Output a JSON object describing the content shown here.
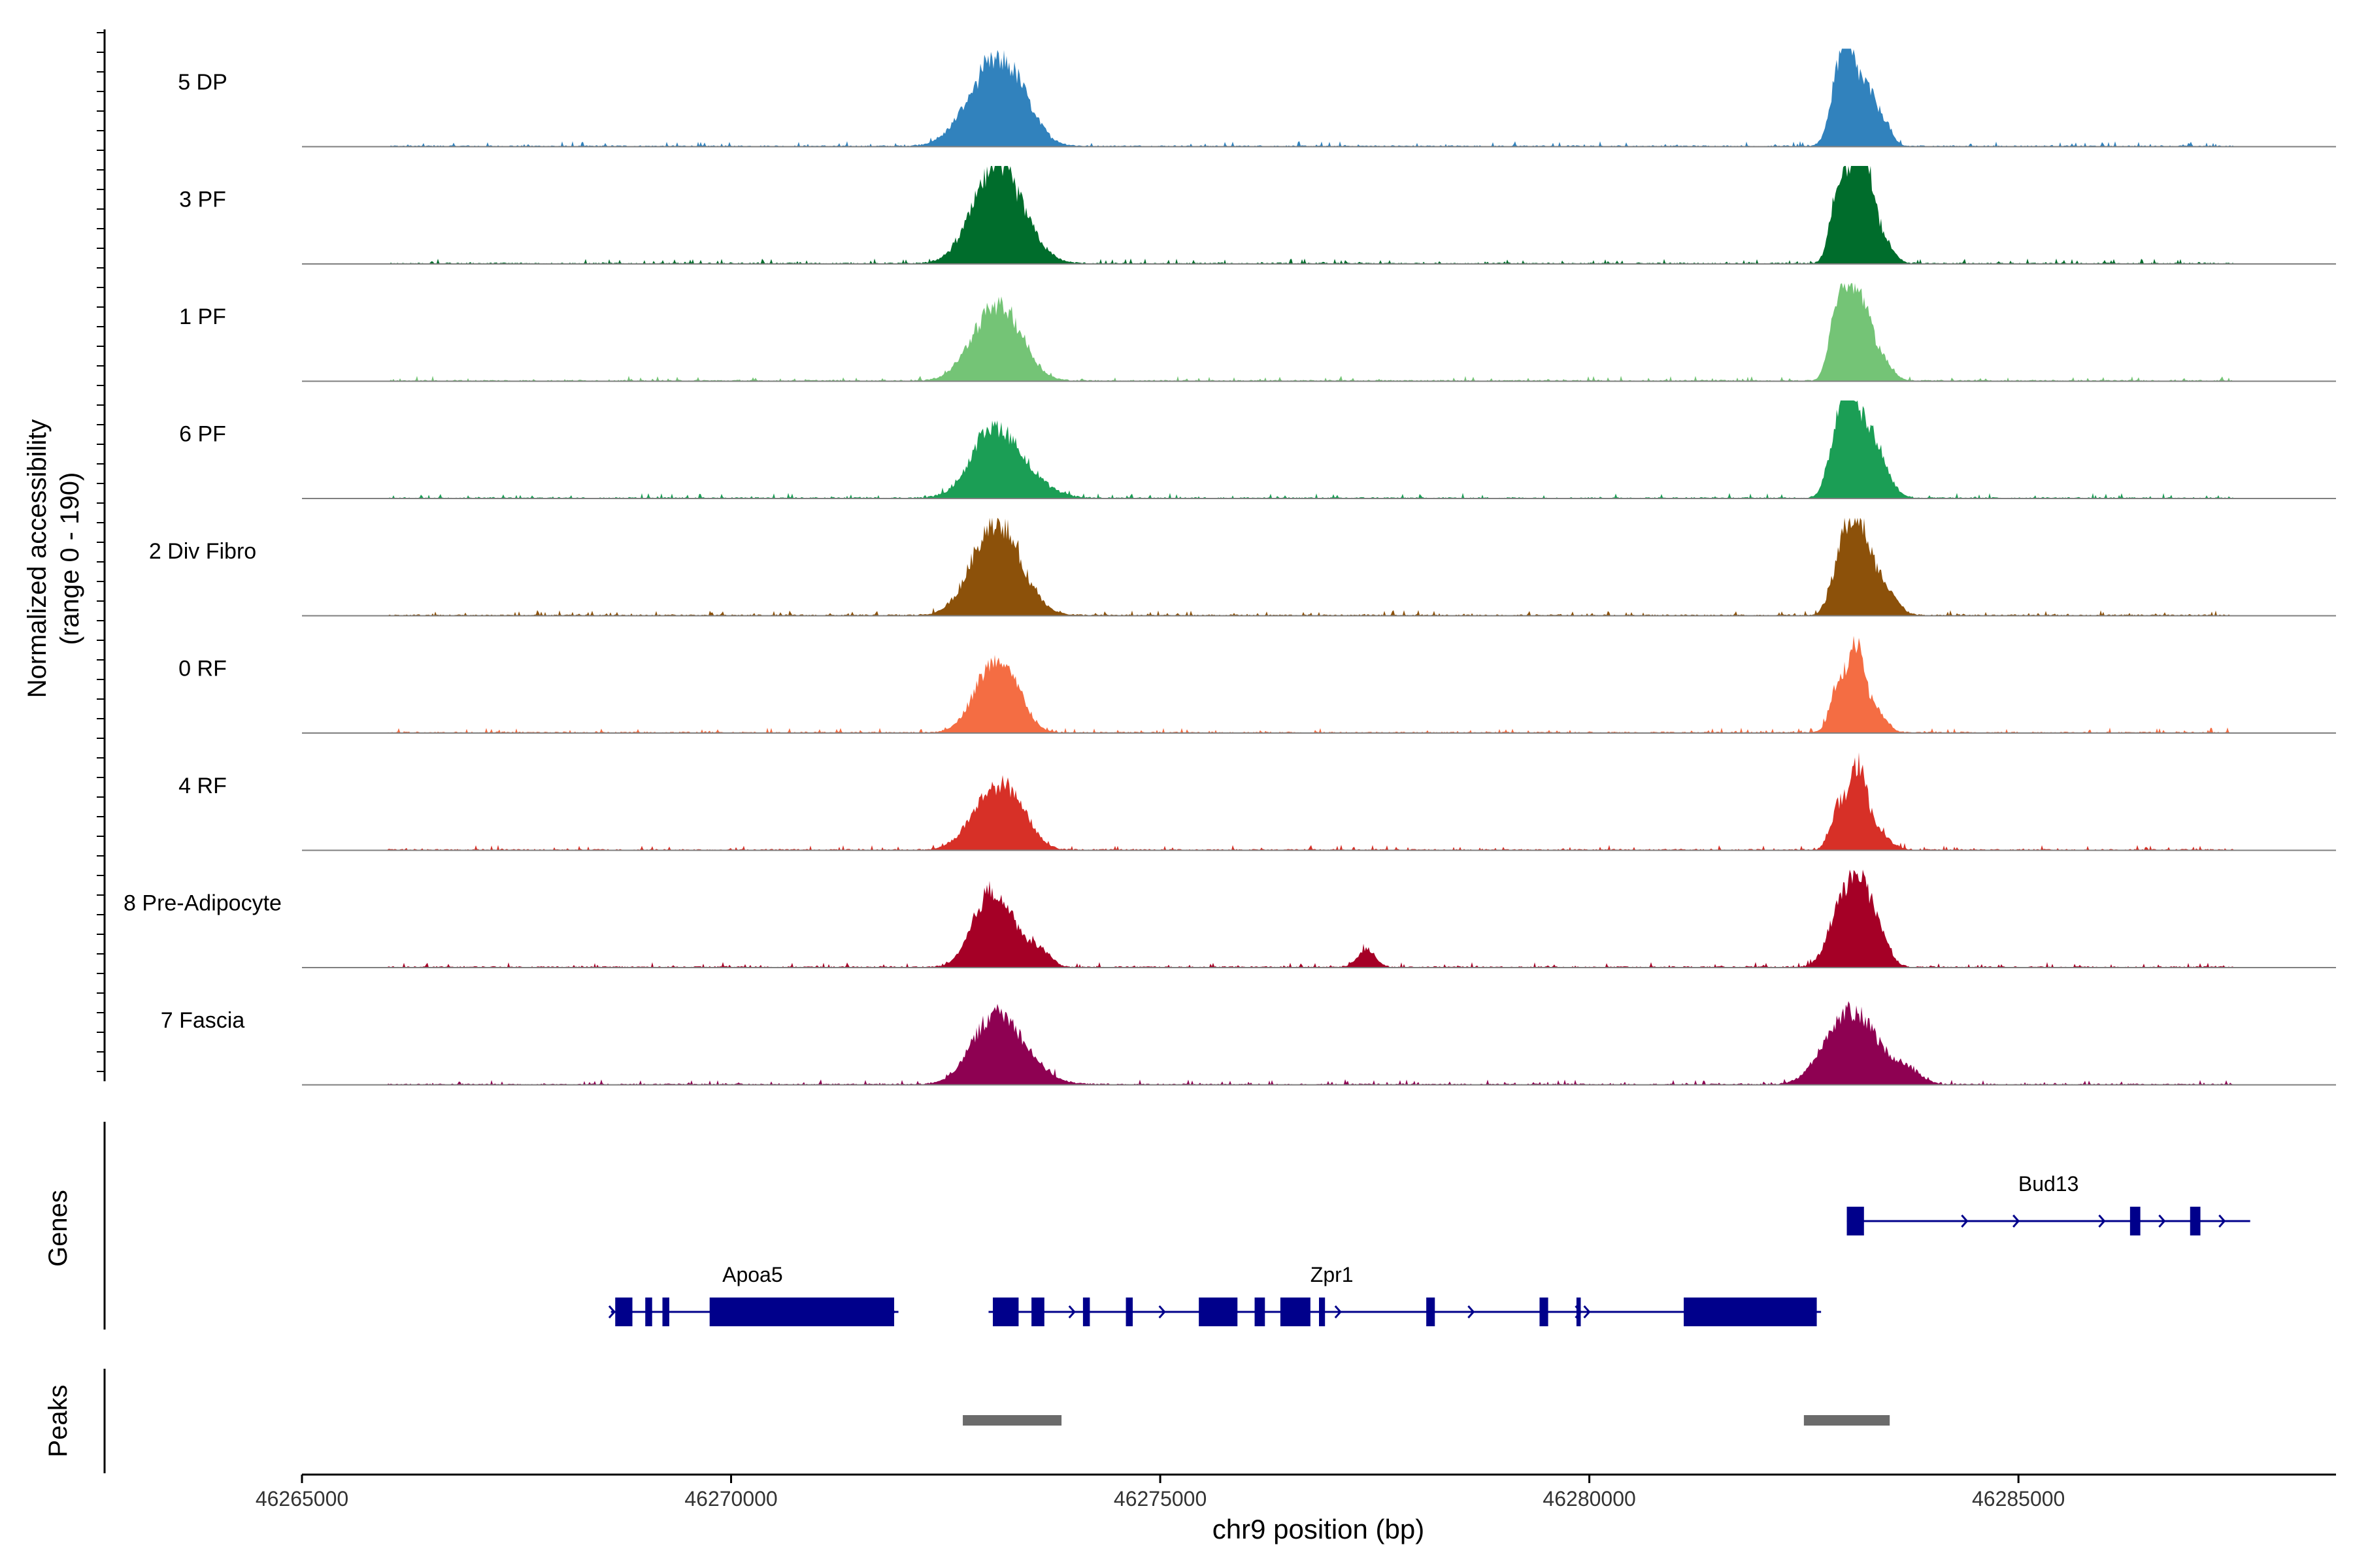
{
  "chart_data": {
    "type": "area",
    "title": "",
    "y_axis_title": "Normalized accessibility",
    "y_axis_subtitle": "(range 0 - 190)",
    "ylim": [
      0,
      190
    ],
    "x_axis_title": "chr9 position (bp)",
    "xlim": [
      46265000,
      46288700
    ],
    "x_ticks": [
      46265000,
      46270000,
      46275000,
      46280000,
      46285000
    ],
    "x_tick_labels": [
      "46265000",
      "46270000",
      "46275000",
      "46280000",
      "46285000"
    ],
    "background_range": [
      46266000,
      46287500
    ],
    "tracks": [
      {
        "name": "5 DP",
        "color": "#3182bd",
        "peaks": [
          [
            46273050,
            300,
            150
          ],
          [
            46273350,
            200,
            40
          ],
          [
            46282900,
            100,
            90
          ],
          [
            46283050,
            130,
            150
          ],
          [
            46283280,
            90,
            70
          ],
          [
            46283450,
            80,
            40
          ]
        ]
      },
      {
        "name": "3 PF",
        "color": "#006d2c",
        "peaks": [
          [
            46273050,
            260,
            160
          ],
          [
            46273350,
            240,
            50
          ],
          [
            46283200,
            180,
            30
          ],
          [
            46282900,
            90,
            140
          ],
          [
            46283060,
            90,
            105
          ],
          [
            46283200,
            95,
            160
          ],
          [
            46283400,
            120,
            40
          ]
        ]
      },
      {
        "name": "1 PF",
        "color": "#74c476",
        "peaks": [
          [
            46273050,
            260,
            130
          ],
          [
            46273330,
            200,
            35
          ],
          [
            46282880,
            90,
            120
          ],
          [
            46283100,
            130,
            170
          ],
          [
            46283350,
            140,
            50
          ]
        ]
      },
      {
        "name": "6 PF",
        "color": "#1b9e55",
        "peaks": [
          [
            46273050,
            260,
            120
          ],
          [
            46273400,
            280,
            35
          ],
          [
            46282900,
            110,
            125
          ],
          [
            46283050,
            100,
            150
          ],
          [
            46283250,
            130,
            100
          ],
          [
            46283400,
            140,
            40
          ]
        ]
      },
      {
        "name": "2 Div Fibro",
        "color": "#8c510a",
        "peaks": [
          [
            46273050,
            260,
            160
          ],
          [
            46273300,
            250,
            35
          ],
          [
            46282950,
            120,
            100
          ],
          [
            46283150,
            140,
            155
          ],
          [
            46283450,
            130,
            50
          ]
        ]
      },
      {
        "name": "0 RF",
        "color": "#f46d43",
        "peaks": [
          [
            46273050,
            220,
            130
          ],
          [
            46273350,
            140,
            35
          ],
          [
            46282900,
            90,
            95
          ],
          [
            46283120,
            90,
            170
          ],
          [
            46283350,
            110,
            40
          ]
        ]
      },
      {
        "name": "4 RF",
        "color": "#d73027",
        "peaks": [
          [
            46273050,
            250,
            110
          ],
          [
            46273350,
            180,
            45
          ],
          [
            46282900,
            90,
            80
          ],
          [
            46283130,
            100,
            150
          ],
          [
            46283350,
            140,
            35
          ]
        ]
      },
      {
        "name": "8 Pre-Adipocyte",
        "color": "#a50026",
        "peaks": [
          [
            46273000,
            200,
            120
          ],
          [
            46273250,
            220,
            50
          ],
          [
            46273600,
            120,
            25
          ],
          [
            46277400,
            100,
            35
          ],
          [
            46282900,
            140,
            90
          ],
          [
            46283150,
            140,
            160
          ],
          [
            46283400,
            110,
            50
          ]
        ]
      },
      {
        "name": "7 Fascia",
        "color": "#8e0152",
        "peaks": [
          [
            46273050,
            260,
            120
          ],
          [
            46273400,
            260,
            40
          ],
          [
            46283100,
            280,
            130
          ],
          [
            46282800,
            200,
            30
          ],
          [
            46283700,
            160,
            25
          ]
        ]
      }
    ],
    "genes_track_label": "Genes",
    "genes": [
      {
        "name": "Bud13",
        "label_pos": 46285350,
        "start": 46283000,
        "end": 46287700,
        "exons": [
          [
            46283000,
            46283200
          ],
          [
            46286300,
            46286420
          ],
          [
            46287000,
            46287120
          ]
        ],
        "arrows": [
          46284400,
          46285000,
          46286000,
          46286700,
          46287400
        ]
      },
      {
        "name": "Apoa5",
        "label_pos": 46270250,
        "start": 46268600,
        "end": 46271950,
        "exons": [
          [
            46268650,
            46268850
          ],
          [
            46269000,
            46269080
          ],
          [
            46269200,
            46269280
          ],
          [
            46269750,
            46271900
          ]
        ],
        "arrows": [
          46268640,
          46271900
        ]
      },
      {
        "name": "Zpr1",
        "label_pos": 46277000,
        "start": 46273000,
        "end": 46282700,
        "exons": [
          [
            46273050,
            46273350
          ],
          [
            46273500,
            46273650
          ],
          [
            46274100,
            46274180
          ],
          [
            46274600,
            46274680
          ],
          [
            46275450,
            46275900
          ],
          [
            46276100,
            46276220
          ],
          [
            46276400,
            46276750
          ],
          [
            46276850,
            46276920
          ],
          [
            46278100,
            46278200
          ],
          [
            46279420,
            46279520
          ],
          [
            46279850,
            46279900
          ],
          [
            46281100,
            46282650
          ]
        ],
        "arrows": [
          46274000,
          46275050,
          46277100,
          46278650,
          46279900,
          46280000
        ]
      }
    ],
    "peaks_track_label": "Peaks",
    "peak_regions": [
      [
        46272700,
        46273850
      ],
      [
        46282500,
        46283500
      ]
    ]
  }
}
